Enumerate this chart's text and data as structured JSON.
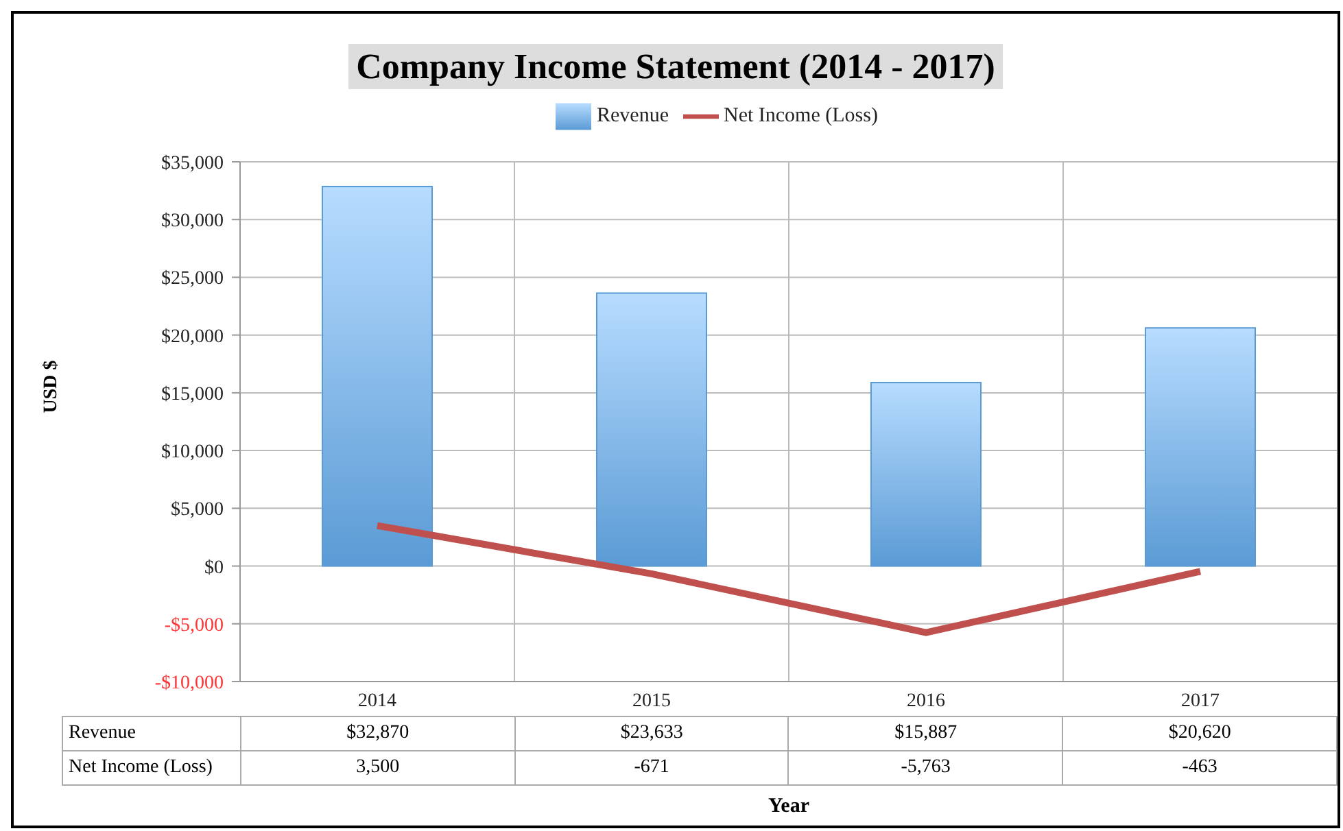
{
  "chart_data": {
    "type": "bar",
    "title": "Company Income Statement (2014 - 2017)",
    "xlabel": "Year",
    "ylabel": "USD $",
    "categories": [
      "2014",
      "2015",
      "2016",
      "2017"
    ],
    "series": [
      {
        "name": "Revenue",
        "color": "#5b9bd5",
        "values": [
          32870,
          23633,
          15887,
          20620
        ],
        "value_labels": [
          "$32,870",
          "$23,633",
          "$15,887",
          "$20,620"
        ]
      },
      {
        "name": "Net Income (Loss)",
        "type": "line",
        "color": "#c0504d",
        "values": [
          3500,
          -671,
          -5763,
          -463
        ],
        "value_labels": [
          "3,500",
          "-671",
          "-5,763",
          "-463"
        ],
        "marker": "none"
      }
    ],
    "ylim": [
      -10000,
      35000
    ],
    "yticks": [
      {
        "value": -10000,
        "label": "-$10,000"
      },
      {
        "value": -5000,
        "label": "-$5,000"
      },
      {
        "value": 0,
        "label": "$0"
      },
      {
        "value": 5000,
        "label": "$5,000"
      },
      {
        "value": 10000,
        "label": "$10,000"
      },
      {
        "value": 15000,
        "label": "$15,000"
      },
      {
        "value": 20000,
        "label": "$20,000"
      },
      {
        "value": 25000,
        "label": "$25,000"
      },
      {
        "value": 30000,
        "label": "$30,000"
      },
      {
        "value": 35000,
        "label": "$35,000"
      }
    ],
    "grid": true,
    "legend": "top"
  }
}
